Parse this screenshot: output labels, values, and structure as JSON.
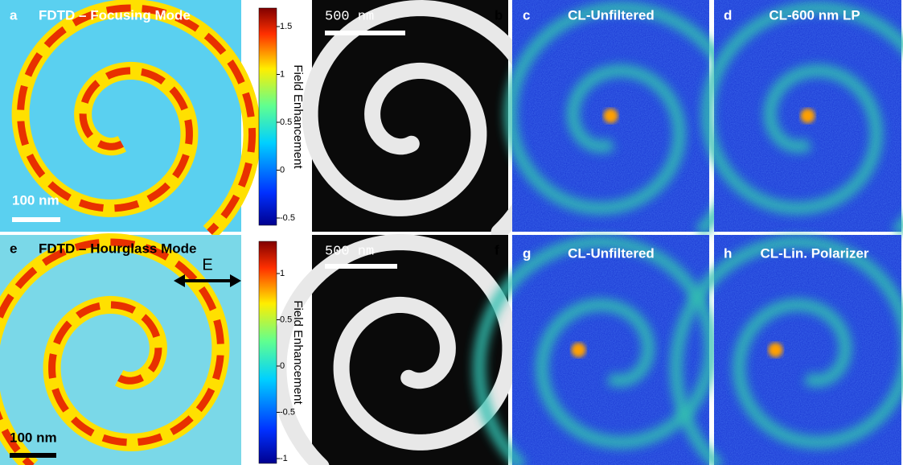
{
  "panels": [
    {
      "letter": "a",
      "title": "FDTD – Focusing Mode",
      "scale_bar": "100 nm"
    },
    {
      "letter": "b",
      "scale_bar": "500 nm"
    },
    {
      "letter": "c",
      "title": "CL-Unfiltered"
    },
    {
      "letter": "d",
      "title": "CL-600 nm LP"
    },
    {
      "letter": "e",
      "title": "FDTD – Hourglass Mode",
      "scale_bar": "100 nm",
      "arrow_label": "E"
    },
    {
      "letter": "f",
      "scale_bar": "500 nm"
    },
    {
      "letter": "g",
      "title": "CL-Unfiltered"
    },
    {
      "letter": "h",
      "title": "CL-Lin. Polarizer"
    }
  ],
  "colorbars": [
    {
      "label": "Field Enhancement",
      "ticks": [
        1.5,
        1,
        0.5,
        0,
        -0.5
      ]
    },
    {
      "label": "Field Enhancement",
      "ticks": [
        1,
        0.5,
        0,
        -0.5,
        -1
      ]
    }
  ]
}
